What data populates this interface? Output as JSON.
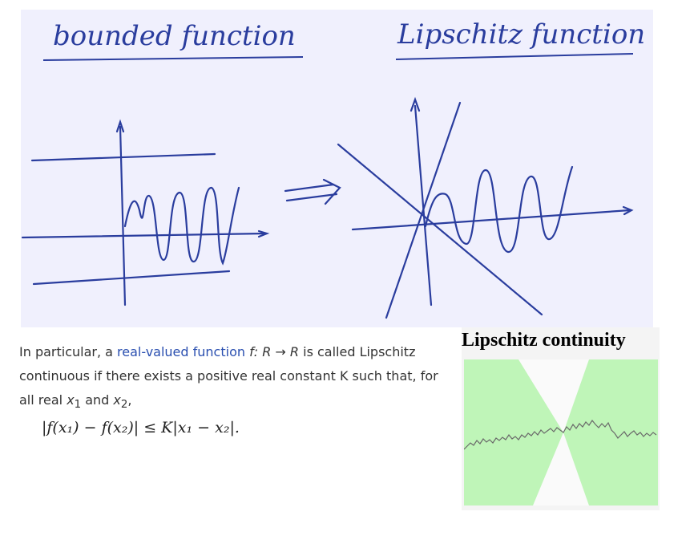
{
  "sketch": {
    "left_title": "bounded function",
    "right_title": "Lipschitz function",
    "ink_color": "#2a3d9e",
    "paper_color": "#f0f0fd"
  },
  "paragraph": {
    "intro": "In particular, a ",
    "link_text": "real-valued function",
    "fn_symbol": "f",
    "mapping": ": R → R",
    "rest_line1": " is called Lipschitz",
    "line2": "continuous if there exists a positive real constant K such that, for",
    "line3_start": "all real ",
    "x1": "x",
    "x1_sub": "1",
    "and": " and ",
    "x2": "x",
    "x2_sub": "2",
    "line3_end": ","
  },
  "formula": {
    "text": "|f(x₁) − f(x₂)| ≤ K|x₁ − x₂|."
  },
  "lipschitz_panel": {
    "title": "Lipschitz continuity",
    "green_color": "#bff5b8",
    "cone_color": "#fafafa"
  }
}
